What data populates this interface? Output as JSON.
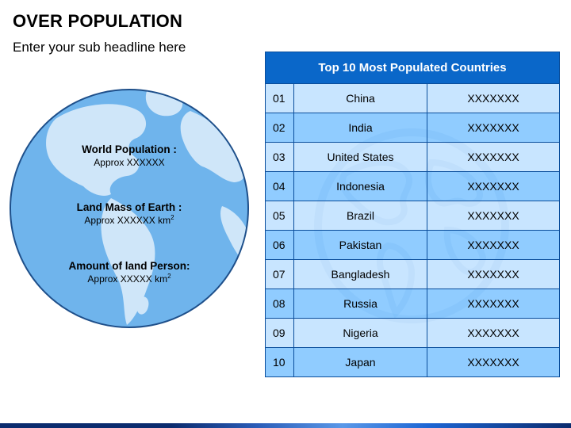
{
  "slide": {
    "title": "OVER POPULATION",
    "subtitle": "Enter your sub headline here"
  },
  "globe": {
    "items": [
      {
        "heading": "World Population :",
        "value": "Approx XXXXXX"
      },
      {
        "heading": "Land Mass of Earth :",
        "value": "Approx XXXXXX km",
        "unit_sup": "2"
      },
      {
        "heading": "Amount of land Person:",
        "value": "Approx XXXXX km",
        "unit_sup": "2"
      }
    ]
  },
  "table": {
    "title": "Top 10 Most Populated Countries",
    "rows": [
      {
        "rank": "01",
        "country": "China",
        "value": "XXXXXXX"
      },
      {
        "rank": "02",
        "country": "India",
        "value": "XXXXXXX"
      },
      {
        "rank": "03",
        "country": "United States",
        "value": "XXXXXXX"
      },
      {
        "rank": "04",
        "country": "Indonesia",
        "value": "XXXXXXX"
      },
      {
        "rank": "05",
        "country": "Brazil",
        "value": "XXXXXXX"
      },
      {
        "rank": "06",
        "country": "Pakistan",
        "value": "XXXXXXX"
      },
      {
        "rank": "07",
        "country": "Bangladesh",
        "value": "XXXXXXX"
      },
      {
        "rank": "08",
        "country": "Russia",
        "value": "XXXXXXX"
      },
      {
        "rank": "09",
        "country": "Nigeria",
        "value": "XXXXXXX"
      },
      {
        "rank": "10",
        "country": "Japan",
        "value": "XXXXXXX"
      }
    ]
  },
  "colors": {
    "header": "#0a67c9",
    "row_light": "#bee1ff",
    "row_dark": "#7dc3ff",
    "globe_ocean": "#6fb4ec",
    "globe_land": "#cfe6f9"
  }
}
